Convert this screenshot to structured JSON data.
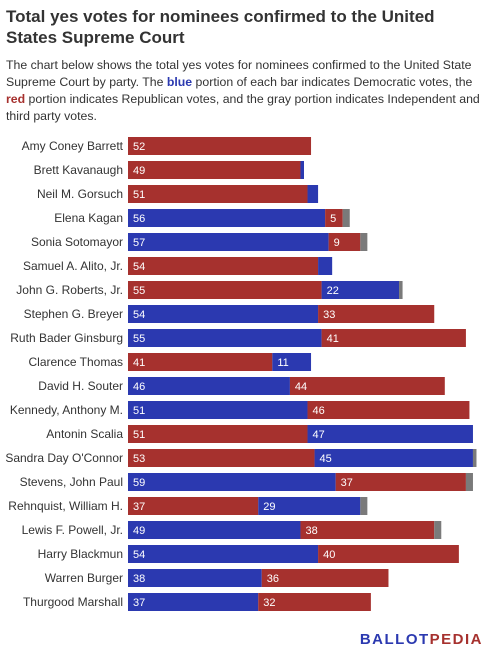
{
  "header": {
    "title": "Total yes votes for nominees confirmed to the United States Supreme Court",
    "desc_part1": "The chart below shows the total yes votes for nominees confirmed to the United State Supreme Court by party. The ",
    "desc_blue": "blue",
    "desc_part2": " portion of each bar indicates Democratic votes, the ",
    "desc_red": "red",
    "desc_part3": " portion indicates Republican votes, and the gray portion indicates Independent and third party votes."
  },
  "brand": {
    "part1": "BALLOT",
    "part2": "PEDIA"
  },
  "colors": {
    "democratic": "#2b39b0",
    "republican": "#a6312e",
    "other": "#7a7a7a"
  },
  "chart_data": {
    "type": "bar",
    "orientation": "horizontal",
    "stacked": true,
    "title": "Total yes votes for nominees confirmed to the United States Supreme Court",
    "grid": false,
    "legend": "none",
    "categories": [
      "Amy Coney Barrett",
      "Brett Kavanaugh",
      "Neil M. Gorsuch",
      "Elena Kagan",
      "Sonia Sotomayor",
      "Samuel A. Alito, Jr.",
      "John G. Roberts, Jr.",
      "Stephen G. Breyer",
      "Ruth Bader Ginsburg",
      "Clarence Thomas",
      "David H. Souter",
      "Kennedy, Anthony M.",
      "Antonin Scalia",
      "Sandra Day O'Connor",
      "Stevens, John Paul",
      "Rehnquist, William H.",
      "Lewis F. Powell, Jr.",
      "Harry Blackmun",
      "Warren Burger",
      "Thurgood Marshall"
    ],
    "bars": [
      [
        {
          "party": "republican",
          "value": 52
        }
      ],
      [
        {
          "party": "republican",
          "value": 49
        },
        {
          "party": "democratic",
          "value": 1
        }
      ],
      [
        {
          "party": "republican",
          "value": 51
        },
        {
          "party": "democratic",
          "value": 3
        }
      ],
      [
        {
          "party": "democratic",
          "value": 56
        },
        {
          "party": "republican",
          "value": 5
        },
        {
          "party": "other",
          "value": 2
        }
      ],
      [
        {
          "party": "democratic",
          "value": 57
        },
        {
          "party": "republican",
          "value": 9
        },
        {
          "party": "other",
          "value": 2
        }
      ],
      [
        {
          "party": "republican",
          "value": 54
        },
        {
          "party": "democratic",
          "value": 4
        }
      ],
      [
        {
          "party": "republican",
          "value": 55
        },
        {
          "party": "democratic",
          "value": 22
        },
        {
          "party": "other",
          "value": 1
        }
      ],
      [
        {
          "party": "democratic",
          "value": 54
        },
        {
          "party": "republican",
          "value": 33
        }
      ],
      [
        {
          "party": "democratic",
          "value": 55
        },
        {
          "party": "republican",
          "value": 41
        }
      ],
      [
        {
          "party": "republican",
          "value": 41
        },
        {
          "party": "democratic",
          "value": 11
        }
      ],
      [
        {
          "party": "democratic",
          "value": 46
        },
        {
          "party": "republican",
          "value": 44
        }
      ],
      [
        {
          "party": "democratic",
          "value": 51
        },
        {
          "party": "republican",
          "value": 46
        }
      ],
      [
        {
          "party": "republican",
          "value": 51
        },
        {
          "party": "democratic",
          "value": 47
        }
      ],
      [
        {
          "party": "republican",
          "value": 53
        },
        {
          "party": "democratic",
          "value": 45
        },
        {
          "party": "other",
          "value": 1
        }
      ],
      [
        {
          "party": "democratic",
          "value": 59
        },
        {
          "party": "republican",
          "value": 37
        },
        {
          "party": "other",
          "value": 2
        }
      ],
      [
        {
          "party": "republican",
          "value": 37
        },
        {
          "party": "democratic",
          "value": 29
        },
        {
          "party": "other",
          "value": 2
        }
      ],
      [
        {
          "party": "democratic",
          "value": 49
        },
        {
          "party": "republican",
          "value": 38
        },
        {
          "party": "other",
          "value": 2
        }
      ],
      [
        {
          "party": "democratic",
          "value": 54
        },
        {
          "party": "republican",
          "value": 40
        }
      ],
      [
        {
          "party": "democratic",
          "value": 38
        },
        {
          "party": "republican",
          "value": 36
        }
      ],
      [
        {
          "party": "democratic",
          "value": 37
        },
        {
          "party": "republican",
          "value": 32
        }
      ]
    ],
    "value_labels_min": 5,
    "xlim": [
      0,
      100
    ]
  }
}
